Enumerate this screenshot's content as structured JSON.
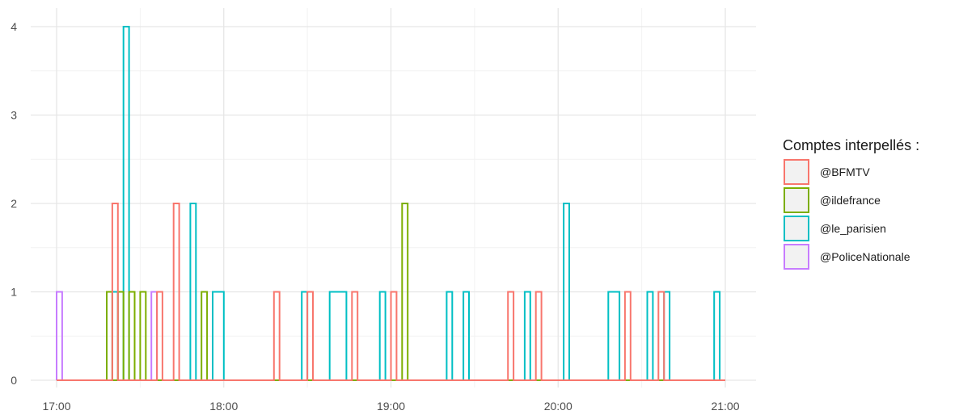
{
  "chart_data": {
    "type": "histogram-step",
    "title": "",
    "xlabel": "",
    "ylabel": "",
    "x_ticks": [
      "17:00",
      "18:00",
      "19:00",
      "20:00",
      "21:00"
    ],
    "y_ticks": [
      "0",
      "1",
      "2",
      "3",
      "4"
    ],
    "ylim": [
      0,
      4
    ],
    "xlim_minutes_from_1700": [
      0,
      240
    ],
    "grid": true,
    "legend_placement": "right",
    "legend_title": "Comptes interpellés :",
    "bin_width_minutes": 2,
    "series": [
      {
        "name": "@BFMTV",
        "color": "#F8766D",
        "bins": [
          {
            "start": "17:20",
            "count": 2
          },
          {
            "start": "17:36",
            "count": 1
          },
          {
            "start": "17:42",
            "count": 2
          },
          {
            "start": "18:18",
            "count": 1
          },
          {
            "start": "18:30",
            "count": 1
          },
          {
            "start": "18:46",
            "count": 1
          },
          {
            "start": "19:00",
            "count": 1
          },
          {
            "start": "19:42",
            "count": 1
          },
          {
            "start": "19:52",
            "count": 1
          },
          {
            "start": "20:24",
            "count": 1
          },
          {
            "start": "20:36",
            "count": 1
          }
        ]
      },
      {
        "name": "@ildefrance",
        "color": "#7CAE00",
        "bins": [
          {
            "start": "17:18",
            "count": 1
          },
          {
            "start": "17:22",
            "count": 1
          },
          {
            "start": "17:26",
            "count": 1
          },
          {
            "start": "17:30",
            "count": 1
          },
          {
            "start": "17:52",
            "count": 1
          },
          {
            "start": "19:04",
            "count": 2
          }
        ]
      },
      {
        "name": "@le_parisien",
        "color": "#00BFC4",
        "bins": [
          {
            "start": "17:20",
            "count": 1
          },
          {
            "start": "17:24",
            "count": 4
          },
          {
            "start": "17:48",
            "count": 2
          },
          {
            "start": "17:56",
            "count": 1
          },
          {
            "start": "17:58",
            "count": 1
          },
          {
            "start": "18:28",
            "count": 1
          },
          {
            "start": "18:38",
            "count": 1
          },
          {
            "start": "18:40",
            "count": 1
          },
          {
            "start": "18:42",
            "count": 1
          },
          {
            "start": "18:56",
            "count": 1
          },
          {
            "start": "19:20",
            "count": 1
          },
          {
            "start": "19:26",
            "count": 1
          },
          {
            "start": "19:48",
            "count": 1
          },
          {
            "start": "20:02",
            "count": 2
          },
          {
            "start": "20:18",
            "count": 1
          },
          {
            "start": "20:20",
            "count": 1
          },
          {
            "start": "20:32",
            "count": 1
          },
          {
            "start": "20:38",
            "count": 1
          },
          {
            "start": "20:56",
            "count": 1
          }
        ]
      },
      {
        "name": "@PoliceNationale",
        "color": "#C77CFF",
        "bins": [
          {
            "start": "17:00",
            "count": 1
          },
          {
            "start": "17:34",
            "count": 1
          }
        ]
      }
    ]
  }
}
